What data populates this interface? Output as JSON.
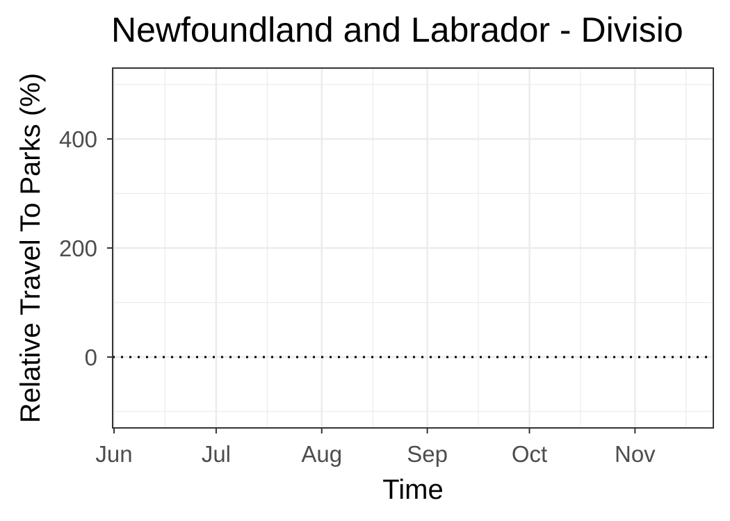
{
  "chart_data": {
    "type": "line",
    "title": "Newfoundland and Labrador - Divisio",
    "xlabel": "Time",
    "ylabel": "Relative Travel To Parks (%)",
    "x_axis": {
      "kind": "date",
      "range": [
        "2020-06-01",
        "2020-11-24"
      ],
      "major_ticks": [
        {
          "date": "2020-06-01",
          "label": "Jun"
        },
        {
          "date": "2020-07-01",
          "label": "Jul"
        },
        {
          "date": "2020-08-01",
          "label": "Aug"
        },
        {
          "date": "2020-09-01",
          "label": "Sep"
        },
        {
          "date": "2020-10-01",
          "label": "Oct"
        },
        {
          "date": "2020-11-01",
          "label": "Nov"
        }
      ],
      "minor_ticks": [
        "2020-06-16",
        "2020-07-16",
        "2020-08-16",
        "2020-09-16",
        "2020-10-16",
        "2020-11-16"
      ]
    },
    "y_axis": {
      "range": [
        -130,
        530
      ],
      "major_ticks": [
        0,
        200,
        400
      ],
      "minor_ticks": [
        -100,
        100,
        300,
        500
      ]
    },
    "reference_line": {
      "y": 0,
      "style": "dotted",
      "color": "#000000"
    },
    "series": [],
    "grid": true,
    "legend": "none",
    "colors": {
      "grid": "#ebebeb",
      "panel_border": "#333333",
      "tick_text": "#4d4d4d",
      "text": "#000000"
    }
  }
}
